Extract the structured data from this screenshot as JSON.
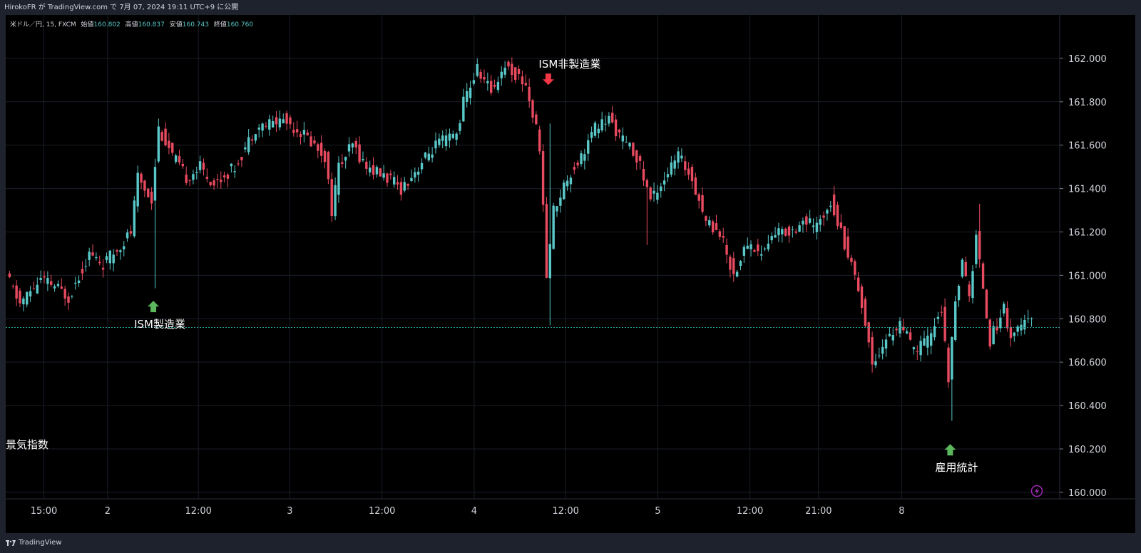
{
  "header": {
    "publish_info": "HirokoFR が TradingView.com で 7月 07, 2024 19:11 UTC+9 に公開"
  },
  "legend": {
    "symbol": "米ドル／円, 15, FXCM",
    "open_label": "始値",
    "open_value": "160.802",
    "high_label": "高値",
    "high_value": "160.837",
    "low_label": "安値",
    "low_value": "160.743",
    "close_label": "終値",
    "close_value": "160.760"
  },
  "footer": {
    "brand": "TradingView"
  },
  "colors": {
    "up": "#5ac8c8",
    "down": "#e84a5f",
    "background": "#000000",
    "grid": "#1a1e28",
    "arrow_up": "#5cb85c",
    "arrow_down": "#f23645"
  },
  "chart_data": {
    "type": "candlestick",
    "title": "",
    "ylim": [
      159.97,
      162.2
    ],
    "y_ticks": [
      "162.000",
      "161.800",
      "161.600",
      "161.400",
      "161.200",
      "161.000",
      "160.800",
      "160.600",
      "160.400",
      "160.200",
      "160.000"
    ],
    "x_ticks": [
      "15:00",
      "2",
      "12:00",
      "3",
      "12:00",
      "4",
      "12:00",
      "5",
      "12:00",
      "21:00",
      "8"
    ],
    "last_price_line": 160.76,
    "price_path": [
      {
        "t": 0,
        "p": 161.0
      },
      {
        "t": 2,
        "p": 160.87
      },
      {
        "t": 5,
        "p": 160.98
      },
      {
        "t": 7,
        "p": 160.95
      },
      {
        "t": 9,
        "p": 160.9
      },
      {
        "t": 12,
        "p": 161.1
      },
      {
        "t": 14,
        "p": 161.05
      },
      {
        "t": 16,
        "p": 161.12
      },
      {
        "t": 18,
        "p": 161.2
      },
      {
        "t": 19,
        "p": 161.45
      },
      {
        "t": 21,
        "p": 161.35
      },
      {
        "t": 22,
        "p": 161.68
      },
      {
        "t": 24,
        "p": 161.55
      },
      {
        "t": 26,
        "p": 161.45
      },
      {
        "t": 28,
        "p": 161.5
      },
      {
        "t": 30,
        "p": 161.42
      },
      {
        "t": 33,
        "p": 161.5
      },
      {
        "t": 36,
        "p": 161.68
      },
      {
        "t": 40,
        "p": 161.72
      },
      {
        "t": 43,
        "p": 161.65
      },
      {
        "t": 46,
        "p": 161.55
      },
      {
        "t": 47,
        "p": 161.3
      },
      {
        "t": 48,
        "p": 161.5
      },
      {
        "t": 50,
        "p": 161.6
      },
      {
        "t": 52,
        "p": 161.5
      },
      {
        "t": 55,
        "p": 161.45
      },
      {
        "t": 57,
        "p": 161.4
      },
      {
        "t": 59,
        "p": 161.48
      },
      {
        "t": 62,
        "p": 161.6
      },
      {
        "t": 65,
        "p": 161.65
      },
      {
        "t": 66,
        "p": 161.8
      },
      {
        "t": 68,
        "p": 161.95
      },
      {
        "t": 70,
        "p": 161.85
      },
      {
        "t": 72,
        "p": 161.97
      },
      {
        "t": 75,
        "p": 161.88
      },
      {
        "t": 77,
        "p": 161.6
      },
      {
        "t": 78,
        "p": 161.0
      },
      {
        "t": 79,
        "p": 161.3
      },
      {
        "t": 81,
        "p": 161.45
      },
      {
        "t": 83,
        "p": 161.55
      },
      {
        "t": 85,
        "p": 161.68
      },
      {
        "t": 87,
        "p": 161.72
      },
      {
        "t": 89,
        "p": 161.62
      },
      {
        "t": 91,
        "p": 161.55
      },
      {
        "t": 93,
        "p": 161.35
      },
      {
        "t": 95,
        "p": 161.45
      },
      {
        "t": 97,
        "p": 161.55
      },
      {
        "t": 99,
        "p": 161.45
      },
      {
        "t": 101,
        "p": 161.25
      },
      {
        "t": 103,
        "p": 161.2
      },
      {
        "t": 105,
        "p": 161.0
      },
      {
        "t": 107,
        "p": 161.15
      },
      {
        "t": 109,
        "p": 161.1
      },
      {
        "t": 111,
        "p": 161.2
      },
      {
        "t": 113,
        "p": 161.2
      },
      {
        "t": 115,
        "p": 161.25
      },
      {
        "t": 117,
        "p": 161.22
      },
      {
        "t": 119,
        "p": 161.35
      },
      {
        "t": 121,
        "p": 161.15
      },
      {
        "t": 123,
        "p": 160.95
      },
      {
        "t": 125,
        "p": 160.6
      },
      {
        "t": 127,
        "p": 160.7
      },
      {
        "t": 129,
        "p": 160.78
      },
      {
        "t": 131,
        "p": 160.65
      },
      {
        "t": 133,
        "p": 160.7
      },
      {
        "t": 135,
        "p": 160.85
      },
      {
        "t": 136,
        "p": 160.5
      },
      {
        "t": 137,
        "p": 160.9
      },
      {
        "t": 138,
        "p": 161.05
      },
      {
        "t": 139,
        "p": 160.9
      },
      {
        "t": 140,
        "p": 161.18
      },
      {
        "t": 141,
        "p": 160.95
      },
      {
        "t": 142,
        "p": 160.7
      },
      {
        "t": 144,
        "p": 160.85
      },
      {
        "t": 145,
        "p": 160.72
      },
      {
        "t": 147,
        "p": 160.78
      }
    ],
    "spikes": [
      {
        "t": 21,
        "low": 160.94
      },
      {
        "t": 78,
        "high": 161.7,
        "low": 160.77
      },
      {
        "t": 92,
        "low": 161.14
      },
      {
        "t": 136,
        "low": 160.33
      },
      {
        "t": 140,
        "high": 161.33
      }
    ],
    "annotations": [
      {
        "text": "ISM製造業",
        "t": 21,
        "price": 160.83,
        "arrow": "up"
      },
      {
        "text": "ISM非製造業",
        "t": 78,
        "price": 161.93,
        "arrow": "down"
      },
      {
        "text": "雇用統計",
        "t": 136,
        "price": 160.17,
        "arrow": "up"
      },
      {
        "text": "景気指数",
        "t": 0,
        "price": 160.22,
        "arrow": "none"
      }
    ]
  }
}
